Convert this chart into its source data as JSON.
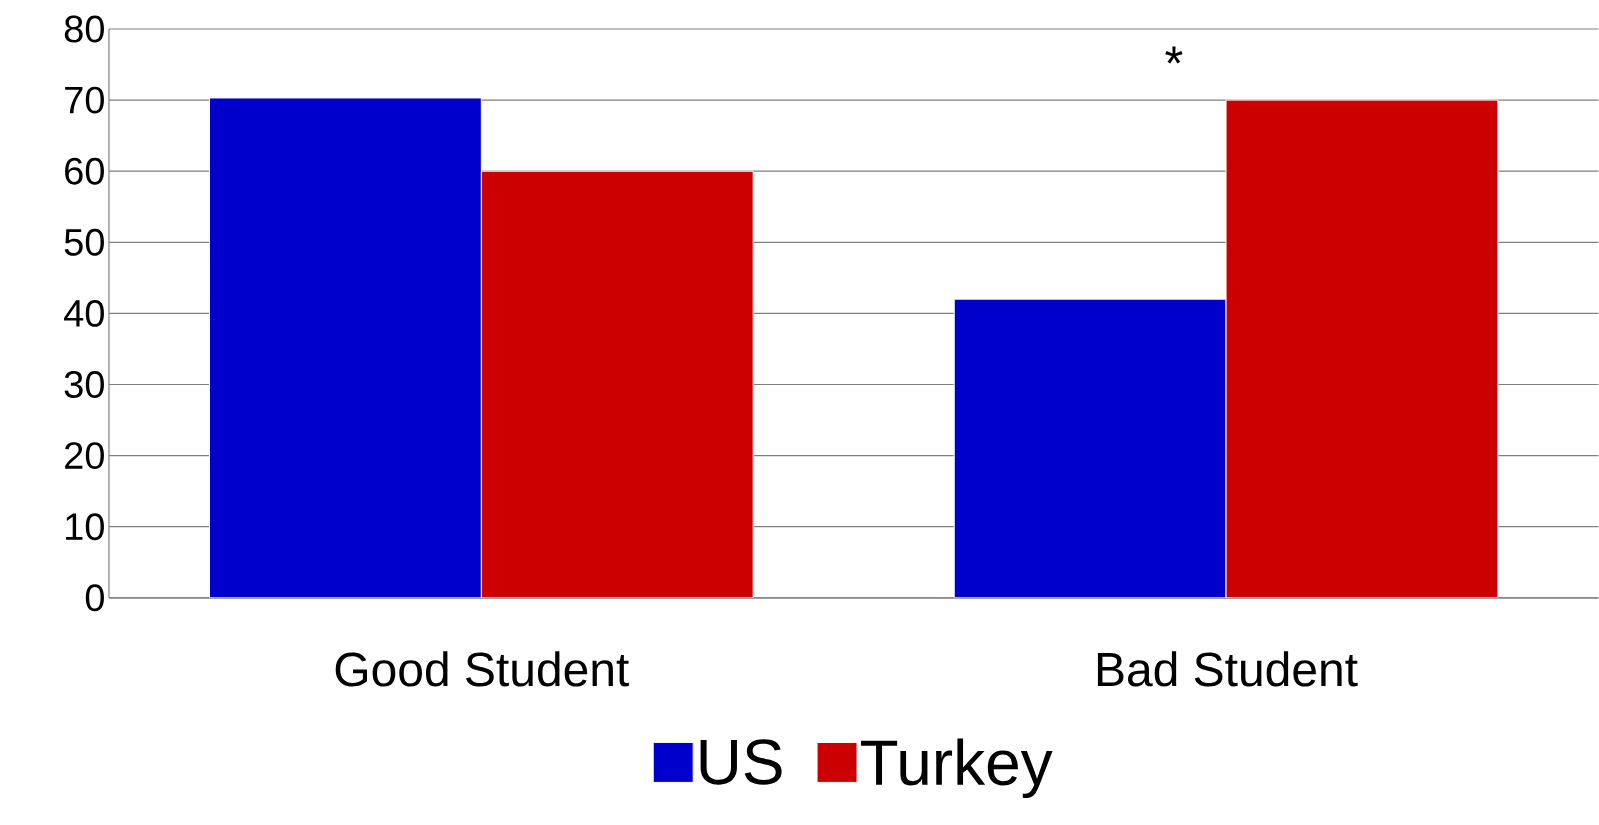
{
  "chart_data": {
    "type": "bar",
    "categories": [
      "Good Student",
      "Bad Student"
    ],
    "series": [
      {
        "name": "US",
        "color": "#0000cc",
        "values": [
          70.3,
          42
        ]
      },
      {
        "name": "Turkey",
        "color": "#cc0000",
        "values": [
          60,
          70
        ]
      }
    ],
    "ylim": [
      0,
      80
    ],
    "yticks": [
      0,
      10,
      20,
      30,
      40,
      50,
      60,
      70,
      80
    ],
    "grid": "y",
    "legend": "bottom",
    "annotations": [
      "*"
    ]
  }
}
